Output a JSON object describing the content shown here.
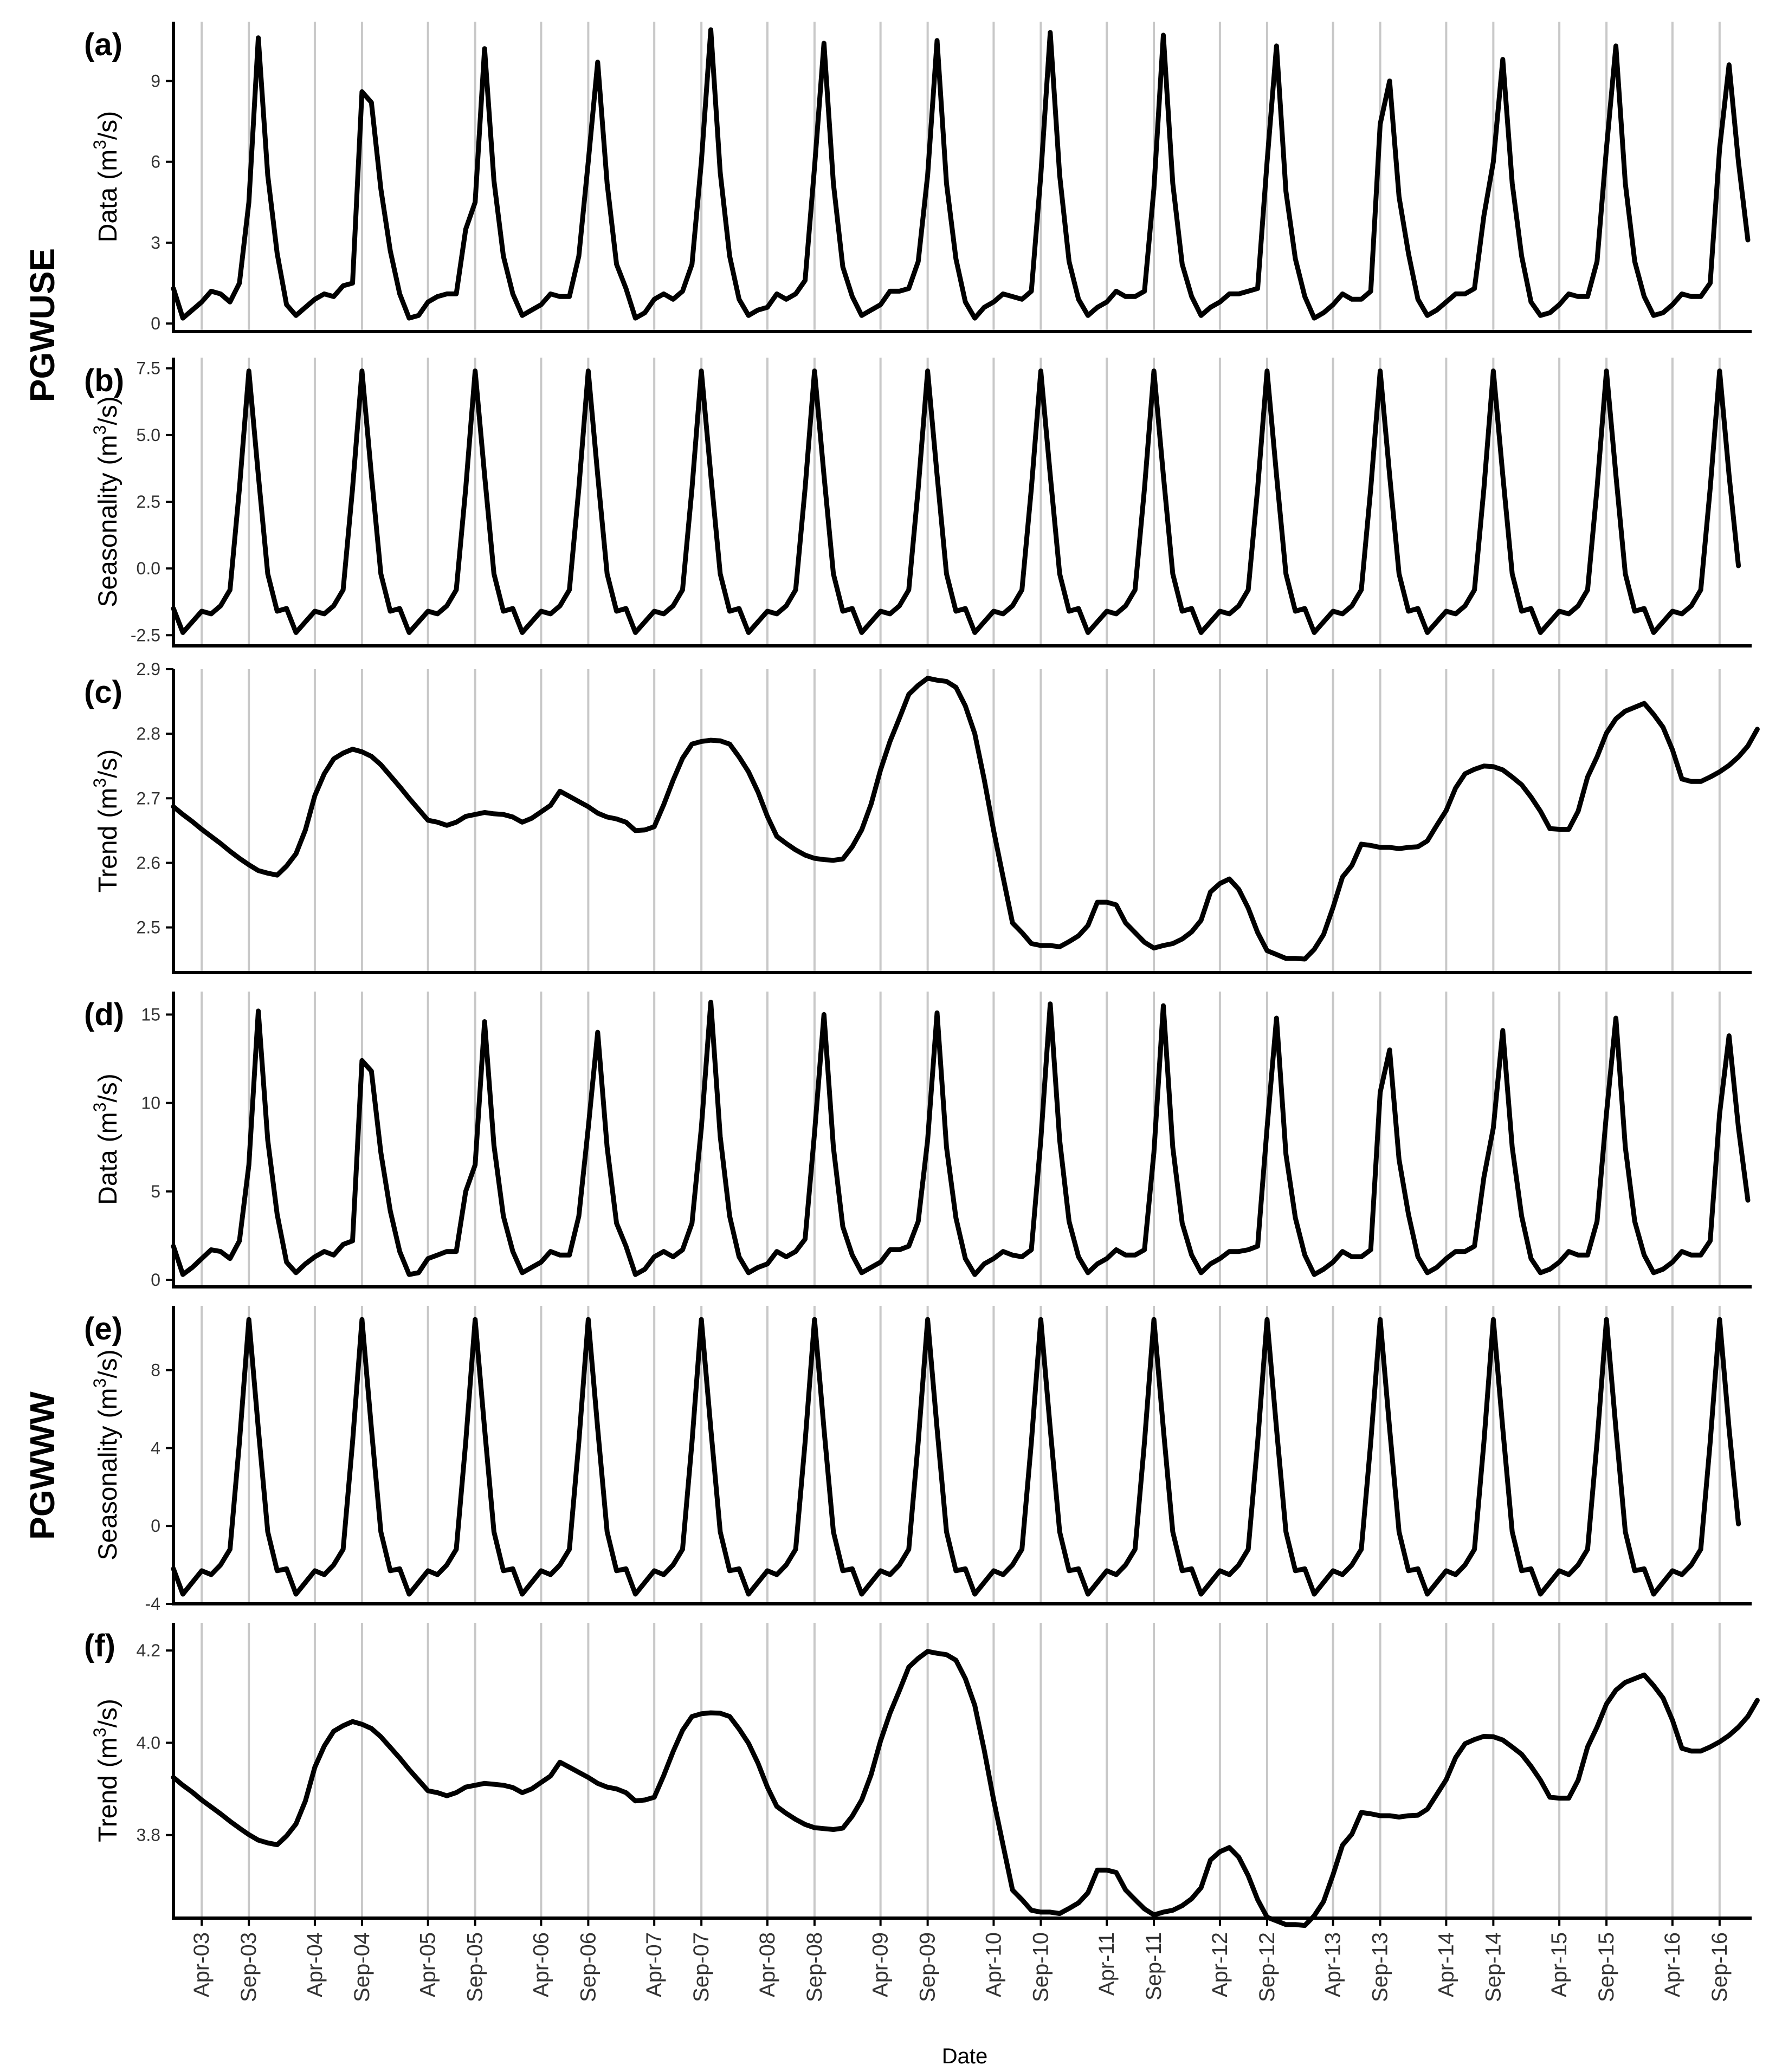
{
  "figure": {
    "group_labels": [
      "PGWUSE",
      "PGWWW"
    ],
    "x_axis_label": "Date",
    "x_tick_labels": [
      "Apr-03",
      "Sep-03",
      "Apr-04",
      "Sep-04",
      "Apr-05",
      "Sep-05",
      "Apr-06",
      "Sep-06",
      "Apr-07",
      "Sep-07",
      "Apr-08",
      "Sep-08",
      "Apr-09",
      "Sep-09",
      "Apr-10",
      "Sep-10",
      "Apr-11",
      "Sep-11",
      "Apr-12",
      "Sep-12",
      "Apr-13",
      "Sep-13",
      "Apr-14",
      "Sep-14",
      "Apr-15",
      "Sep-15",
      "Apr-16",
      "Sep-16"
    ]
  },
  "chart_data": [
    {
      "type": "line",
      "panel_label": "(a)",
      "group": "PGWUSE",
      "ylabel_main": "Data",
      "ylabel_unit_pre": "(m",
      "ylabel_unit_sup": "3",
      "ylabel_unit_post": "/s)",
      "ylim": [
        -0.3,
        11.2
      ],
      "yticks": [
        0,
        3,
        6,
        9
      ],
      "ytick_labels": [
        "0",
        "3",
        "6",
        "9"
      ],
      "xlabel": "",
      "start": "2003-01",
      "values": [
        1.3,
        0.2,
        0.5,
        0.8,
        1.2,
        1.1,
        0.8,
        1.5,
        4.5,
        10.6,
        5.5,
        2.6,
        0.7,
        0.3,
        0.6,
        0.9,
        1.1,
        1.0,
        1.4,
        1.5,
        8.6,
        8.2,
        5.0,
        2.7,
        1.1,
        0.2,
        0.3,
        0.8,
        1.0,
        1.1,
        1.1,
        3.5,
        4.5,
        10.2,
        5.3,
        2.5,
        1.1,
        0.3,
        0.5,
        0.7,
        1.1,
        1.0,
        1.0,
        2.5,
        6.0,
        9.7,
        5.2,
        2.2,
        1.3,
        0.2,
        0.4,
        0.9,
        1.1,
        0.9,
        1.2,
        2.2,
        6.0,
        10.9,
        5.6,
        2.5,
        0.9,
        0.3,
        0.5,
        0.6,
        1.1,
        0.9,
        1.1,
        1.6,
        5.8,
        10.4,
        5.2,
        2.1,
        1.0,
        0.3,
        0.5,
        0.7,
        1.2,
        1.2,
        1.3,
        2.3,
        5.5,
        10.5,
        5.2,
        2.4,
        0.8,
        0.2,
        0.6,
        0.8,
        1.1,
        1.0,
        0.9,
        1.2,
        5.5,
        10.8,
        5.5,
        2.3,
        0.9,
        0.3,
        0.6,
        0.8,
        1.2,
        1.0,
        1.0,
        1.2,
        5.0,
        10.7,
        5.2,
        2.2,
        1.0,
        0.3,
        0.6,
        0.8,
        1.1,
        1.1,
        1.2,
        1.3,
        6.0,
        10.3,
        4.9,
        2.4,
        1.0,
        0.2,
        0.4,
        0.7,
        1.1,
        0.9,
        0.9,
        1.2,
        7.4,
        9.0,
        4.7,
        2.6,
        0.9,
        0.3,
        0.5,
        0.8,
        1.1,
        1.1,
        1.3,
        4.0,
        6.0,
        9.8,
        5.2,
        2.5,
        0.8,
        0.3,
        0.4,
        0.7,
        1.1,
        1.0,
        1.0,
        2.3,
        6.5,
        10.3,
        5.2,
        2.3,
        1.0,
        0.3,
        0.4,
        0.7,
        1.1,
        1.0,
        1.0,
        1.5,
        6.5,
        9.6,
        6.0,
        3.1
      ]
    },
    {
      "type": "line",
      "panel_label": "(b)",
      "group": "PGWUSE",
      "ylabel_main": "Seasonality",
      "ylabel_unit_pre": "(m",
      "ylabel_unit_sup": "3",
      "ylabel_unit_post": "/s)",
      "ylim": [
        -2.9,
        7.9
      ],
      "yticks": [
        -2.5,
        0.0,
        2.5,
        5.0,
        7.5
      ],
      "ytick_labels": [
        "-2.5",
        "0.0",
        "2.5",
        "5.0",
        "7.5"
      ],
      "xlabel": "",
      "start": "2003-01",
      "values": [
        -1.5,
        -2.4,
        -2.0,
        -1.6,
        -1.7,
        -1.4,
        -0.8,
        3.0,
        7.4,
        3.5,
        -0.2,
        -1.6,
        -1.5,
        -2.4,
        -2.0,
        -1.6,
        -1.7,
        -1.4,
        -0.8,
        3.0,
        7.4,
        3.5,
        -0.2,
        -1.6,
        -1.5,
        -2.4,
        -2.0,
        -1.6,
        -1.7,
        -1.4,
        -0.8,
        3.0,
        7.4,
        3.5,
        -0.2,
        -1.6,
        -1.5,
        -2.4,
        -2.0,
        -1.6,
        -1.7,
        -1.4,
        -0.8,
        3.0,
        7.4,
        3.5,
        -0.2,
        -1.6,
        -1.5,
        -2.4,
        -2.0,
        -1.6,
        -1.7,
        -1.4,
        -0.8,
        3.0,
        7.4,
        3.5,
        -0.2,
        -1.6,
        -1.5,
        -2.4,
        -2.0,
        -1.6,
        -1.7,
        -1.4,
        -0.8,
        3.0,
        7.4,
        3.5,
        -0.2,
        -1.6,
        -1.5,
        -2.4,
        -2.0,
        -1.6,
        -1.7,
        -1.4,
        -0.8,
        3.0,
        7.4,
        3.5,
        -0.2,
        -1.6,
        -1.5,
        -2.4,
        -2.0,
        -1.6,
        -1.7,
        -1.4,
        -0.8,
        3.0,
        7.4,
        3.5,
        -0.2,
        -1.6,
        -1.5,
        -2.4,
        -2.0,
        -1.6,
        -1.7,
        -1.4,
        -0.8,
        3.0,
        7.4,
        3.5,
        -0.2,
        -1.6,
        -1.5,
        -2.4,
        -2.0,
        -1.6,
        -1.7,
        -1.4,
        -0.8,
        3.0,
        7.4,
        3.5,
        -0.2,
        -1.6,
        -1.5,
        -2.4,
        -2.0,
        -1.6,
        -1.7,
        -1.4,
        -0.8,
        3.0,
        7.4,
        3.5,
        -0.2,
        -1.6,
        -1.5,
        -2.4,
        -2.0,
        -1.6,
        -1.7,
        -1.4,
        -0.8,
        3.0,
        7.4,
        3.5,
        -0.2,
        -1.6,
        -1.5,
        -2.4,
        -2.0,
        -1.6,
        -1.7,
        -1.4,
        -0.8,
        3.0,
        7.4,
        3.5,
        -0.2,
        -1.6,
        -1.5,
        -2.4,
        -2.0,
        -1.6,
        -1.7,
        -1.4,
        -0.8,
        3.0,
        7.4,
        3.5,
        0.1
      ]
    },
    {
      "type": "line",
      "panel_label": "(c)",
      "group": "PGWUSE",
      "ylabel_main": "Trend",
      "ylabel_unit_pre": "(m",
      "ylabel_unit_sup": "3",
      "ylabel_unit_post": "/s)",
      "ylim": [
        2.43,
        2.9
      ],
      "yticks": [
        2.5,
        2.6,
        2.7,
        2.8,
        2.9
      ],
      "ytick_labels": [
        "2.5",
        "2.6",
        "2.7",
        "2.8",
        "2.9"
      ],
      "xlabel": "",
      "start": "2003-01",
      "values": [
        2.687,
        2.675,
        2.664,
        2.652,
        2.641,
        2.63,
        2.618,
        2.607,
        2.597,
        2.588,
        2.584,
        2.581,
        2.595,
        2.614,
        2.651,
        2.704,
        2.738,
        2.761,
        2.77,
        2.776,
        2.772,
        2.765,
        2.752,
        2.735,
        2.718,
        2.7,
        2.683,
        2.666,
        2.663,
        2.658,
        2.663,
        2.672,
        2.675,
        2.678,
        2.676,
        2.675,
        2.671,
        2.663,
        2.669,
        2.679,
        2.689,
        2.711,
        2.703,
        2.695,
        2.687,
        2.677,
        2.671,
        2.668,
        2.663,
        2.65,
        2.651,
        2.656,
        2.69,
        2.728,
        2.762,
        2.784,
        2.788,
        2.79,
        2.789,
        2.784,
        2.764,
        2.741,
        2.71,
        2.672,
        2.641,
        2.63,
        2.62,
        2.612,
        2.607,
        2.605,
        2.604,
        2.606,
        2.625,
        2.651,
        2.691,
        2.744,
        2.788,
        2.824,
        2.861,
        2.875,
        2.886,
        2.883,
        2.881,
        2.872,
        2.843,
        2.8,
        2.729,
        2.65,
        2.578,
        2.507,
        2.492,
        2.475,
        2.472,
        2.472,
        2.47,
        2.478,
        2.487,
        2.503,
        2.539,
        2.539,
        2.535,
        2.507,
        2.492,
        2.477,
        2.468,
        2.472,
        2.475,
        2.482,
        2.493,
        2.511,
        2.555,
        2.568,
        2.575,
        2.559,
        2.53,
        2.492,
        2.464,
        2.458,
        2.452,
        2.452,
        2.451,
        2.466,
        2.489,
        2.531,
        2.578,
        2.596,
        2.629,
        2.627,
        2.624,
        2.624,
        2.622,
        2.624,
        2.625,
        2.634,
        2.658,
        2.681,
        2.716,
        2.738,
        2.745,
        2.75,
        2.749,
        2.744,
        2.733,
        2.721,
        2.702,
        2.68,
        2.653,
        2.652,
        2.652,
        2.68,
        2.733,
        2.764,
        2.801,
        2.823,
        2.835,
        2.841,
        2.847,
        2.83,
        2.81,
        2.775,
        2.73,
        2.726,
        2.726,
        2.733,
        2.741,
        2.751,
        2.764,
        2.781,
        2.807
      ]
    },
    {
      "type": "line",
      "panel_label": "(d)",
      "group": "PGWWW",
      "ylabel_main": "Data",
      "ylabel_unit_pre": "(m",
      "ylabel_unit_sup": "3",
      "ylabel_unit_post": "/s)",
      "ylim": [
        -0.4,
        16.3
      ],
      "yticks": [
        0,
        5,
        10,
        15
      ],
      "ytick_labels": [
        "0",
        "5",
        "10",
        "15"
      ],
      "xlabel": "",
      "start": "2003-01",
      "values": [
        1.9,
        0.3,
        0.7,
        1.2,
        1.7,
        1.6,
        1.2,
        2.2,
        6.5,
        15.2,
        7.9,
        3.7,
        1.0,
        0.4,
        0.9,
        1.3,
        1.6,
        1.4,
        2.0,
        2.2,
        12.4,
        11.8,
        7.2,
        3.9,
        1.6,
        0.3,
        0.4,
        1.2,
        1.4,
        1.6,
        1.6,
        5.0,
        6.5,
        14.6,
        7.6,
        3.6,
        1.6,
        0.4,
        0.7,
        1.0,
        1.6,
        1.4,
        1.4,
        3.6,
        8.6,
        14.0,
        7.5,
        3.2,
        1.9,
        0.3,
        0.6,
        1.3,
        1.6,
        1.3,
        1.7,
        3.2,
        8.6,
        15.7,
        8.1,
        3.6,
        1.3,
        0.4,
        0.7,
        0.9,
        1.6,
        1.3,
        1.6,
        2.3,
        8.3,
        15.0,
        7.5,
        3.0,
        1.4,
        0.4,
        0.7,
        1.0,
        1.7,
        1.7,
        1.9,
        3.3,
        7.9,
        15.1,
        7.5,
        3.5,
        1.2,
        0.3,
        0.9,
        1.2,
        1.6,
        1.4,
        1.3,
        1.7,
        7.9,
        15.6,
        7.9,
        3.3,
        1.3,
        0.4,
        0.9,
        1.2,
        1.7,
        1.4,
        1.4,
        1.7,
        7.2,
        15.5,
        7.5,
        3.2,
        1.4,
        0.4,
        0.9,
        1.2,
        1.6,
        1.6,
        1.7,
        1.9,
        8.6,
        14.8,
        7.1,
        3.5,
        1.4,
        0.3,
        0.6,
        1.0,
        1.6,
        1.3,
        1.3,
        1.7,
        10.6,
        13.0,
        6.8,
        3.7,
        1.3,
        0.4,
        0.7,
        1.2,
        1.6,
        1.6,
        1.9,
        5.8,
        8.6,
        14.1,
        7.5,
        3.6,
        1.2,
        0.4,
        0.6,
        1.0,
        1.6,
        1.4,
        1.4,
        3.3,
        9.4,
        14.8,
        7.5,
        3.3,
        1.4,
        0.4,
        0.6,
        1.0,
        1.6,
        1.4,
        1.4,
        2.2,
        9.4,
        13.8,
        8.6,
        4.5
      ]
    },
    {
      "type": "line",
      "panel_label": "(e)",
      "group": "PGWWW",
      "ylabel_main": "Seasonality",
      "ylabel_unit_pre": "(m",
      "ylabel_unit_sup": "3",
      "ylabel_unit_post": "/s)",
      "ylim": [
        -4.0,
        11.3
      ],
      "yticks": [
        -4,
        0,
        4,
        8
      ],
      "ytick_labels": [
        "-4",
        "0",
        "4",
        "8"
      ],
      "xlabel": "",
      "start": "2003-01",
      "values": [
        -2.2,
        -3.5,
        -2.9,
        -2.3,
        -2.5,
        -2.0,
        -1.2,
        4.3,
        10.6,
        5.0,
        -0.3,
        -2.3,
        -2.2,
        -3.5,
        -2.9,
        -2.3,
        -2.5,
        -2.0,
        -1.2,
        4.3,
        10.6,
        5.0,
        -0.3,
        -2.3,
        -2.2,
        -3.5,
        -2.9,
        -2.3,
        -2.5,
        -2.0,
        -1.2,
        4.3,
        10.6,
        5.0,
        -0.3,
        -2.3,
        -2.2,
        -3.5,
        -2.9,
        -2.3,
        -2.5,
        -2.0,
        -1.2,
        4.3,
        10.6,
        5.0,
        -0.3,
        -2.3,
        -2.2,
        -3.5,
        -2.9,
        -2.3,
        -2.5,
        -2.0,
        -1.2,
        4.3,
        10.6,
        5.0,
        -0.3,
        -2.3,
        -2.2,
        -3.5,
        -2.9,
        -2.3,
        -2.5,
        -2.0,
        -1.2,
        4.3,
        10.6,
        5.0,
        -0.3,
        -2.3,
        -2.2,
        -3.5,
        -2.9,
        -2.3,
        -2.5,
        -2.0,
        -1.2,
        4.3,
        10.6,
        5.0,
        -0.3,
        -2.3,
        -2.2,
        -3.5,
        -2.9,
        -2.3,
        -2.5,
        -2.0,
        -1.2,
        4.3,
        10.6,
        5.0,
        -0.3,
        -2.3,
        -2.2,
        -3.5,
        -2.9,
        -2.3,
        -2.5,
        -2.0,
        -1.2,
        4.3,
        10.6,
        5.0,
        -0.3,
        -2.3,
        -2.2,
        -3.5,
        -2.9,
        -2.3,
        -2.5,
        -2.0,
        -1.2,
        4.3,
        10.6,
        5.0,
        -0.3,
        -2.3,
        -2.2,
        -3.5,
        -2.9,
        -2.3,
        -2.5,
        -2.0,
        -1.2,
        4.3,
        10.6,
        5.0,
        -0.3,
        -2.3,
        -2.2,
        -3.5,
        -2.9,
        -2.3,
        -2.5,
        -2.0,
        -1.2,
        4.3,
        10.6,
        5.0,
        -0.3,
        -2.3,
        -2.2,
        -3.5,
        -2.9,
        -2.3,
        -2.5,
        -2.0,
        -1.2,
        4.3,
        10.6,
        5.0,
        -0.3,
        -2.3,
        -2.2,
        -3.5,
        -2.9,
        -2.3,
        -2.5,
        -2.0,
        -1.2,
        4.3,
        10.6,
        5.0,
        0.1
      ]
    },
    {
      "type": "line",
      "panel_label": "(f)",
      "group": "PGWWW",
      "ylabel_main": "Trend",
      "ylabel_unit_pre": "(m",
      "ylabel_unit_sup": "3",
      "ylabel_unit_post": "/s)",
      "ylim": [
        3.62,
        4.26
      ],
      "yticks": [
        3.8,
        4.0,
        4.2
      ],
      "ytick_labels": [
        "3.8",
        "4.0",
        "4.2"
      ],
      "xlabel": "",
      "start": "2003-01",
      "values": [
        3.925,
        3.908,
        3.893,
        3.876,
        3.861,
        3.846,
        3.83,
        3.815,
        3.801,
        3.789,
        3.783,
        3.779,
        3.798,
        3.824,
        3.874,
        3.947,
        3.993,
        4.025,
        4.037,
        4.046,
        4.04,
        4.031,
        4.013,
        3.99,
        3.967,
        3.942,
        3.919,
        3.896,
        3.892,
        3.885,
        3.892,
        3.904,
        3.908,
        3.912,
        3.91,
        3.908,
        3.903,
        3.892,
        3.9,
        3.914,
        3.928,
        3.958,
        3.947,
        3.936,
        3.925,
        3.912,
        3.904,
        3.9,
        3.892,
        3.874,
        3.876,
        3.882,
        3.929,
        3.981,
        4.027,
        4.057,
        4.063,
        4.065,
        4.064,
        4.057,
        4.03,
        3.999,
        3.956,
        3.904,
        3.862,
        3.847,
        3.834,
        3.823,
        3.816,
        3.814,
        3.812,
        3.815,
        3.841,
        3.876,
        3.931,
        4.004,
        4.064,
        4.113,
        4.164,
        4.183,
        4.198,
        4.194,
        4.191,
        4.179,
        4.139,
        4.081,
        3.984,
        3.876,
        3.778,
        3.681,
        3.66,
        3.637,
        3.633,
        3.633,
        3.63,
        3.641,
        3.653,
        3.675,
        3.724,
        3.724,
        3.719,
        3.681,
        3.66,
        3.64,
        3.627,
        3.633,
        3.637,
        3.647,
        3.662,
        3.686,
        3.746,
        3.764,
        3.773,
        3.752,
        3.712,
        3.66,
        3.622,
        3.614,
        3.606,
        3.606,
        3.604,
        3.625,
        3.656,
        3.714,
        3.778,
        3.802,
        3.849,
        3.846,
        3.842,
        3.842,
        3.839,
        3.842,
        3.843,
        3.856,
        3.888,
        3.92,
        3.968,
        3.998,
        4.007,
        4.014,
        4.013,
        4.006,
        3.991,
        3.975,
        3.949,
        3.919,
        3.882,
        3.88,
        3.88,
        3.919,
        3.991,
        4.034,
        4.084,
        4.114,
        4.131,
        4.139,
        4.147,
        4.124,
        4.097,
        4.049,
        3.988,
        3.982,
        3.982,
        3.991,
        4.002,
        4.016,
        4.034,
        4.057,
        4.092
      ]
    }
  ]
}
